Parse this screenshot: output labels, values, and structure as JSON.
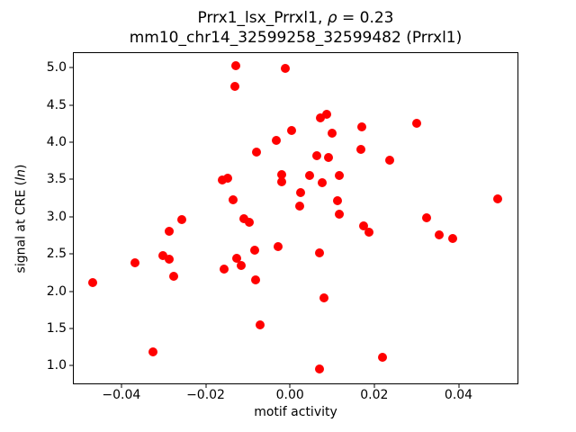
{
  "chart_data": {
    "type": "scatter",
    "title": {
      "line1_prefix": "Prrx1_lsx_Prrxl1, ",
      "line1_rho": "ρ",
      "line1_suffix": " = 0.23",
      "line2": "mm10_chr14_32599258_32599482 (Prrxl1)"
    },
    "xlabel": "motif activity",
    "ylabel": {
      "prefix": "signal at CRE (",
      "italic": "ln",
      "suffix": ")"
    },
    "marker_color": "#ff0000",
    "axis_color": "#000000",
    "legend": "none",
    "grid": false,
    "xlim": [
      -0.0515,
      0.0542
    ],
    "ylim": [
      0.75,
      5.21
    ],
    "xticks": [
      -0.04,
      -0.02,
      0,
      0.02,
      0.04
    ],
    "xtick_labels": [
      "−0.04",
      "−0.02",
      "0.00",
      "0.02",
      "0.04"
    ],
    "yticks": [
      1.0,
      1.5,
      2.0,
      2.5,
      3.0,
      3.5,
      4.0,
      4.5,
      5.0
    ],
    "ytick_labels": [
      "1.0",
      "1.5",
      "2.0",
      "2.5",
      "3.0",
      "3.5",
      "4.0",
      "4.5",
      "5.0"
    ],
    "points": [
      [
        -0.0129,
        5.03
      ],
      [
        -0.001,
        4.99
      ],
      [
        -0.0131,
        4.75
      ],
      [
        0.0004,
        4.16
      ],
      [
        -0.0033,
        4.03
      ],
      [
        -0.008,
        3.87
      ],
      [
        -0.0019,
        3.57
      ],
      [
        -0.0019,
        3.47
      ],
      [
        -0.0161,
        3.49
      ],
      [
        -0.0148,
        3.52
      ],
      [
        -0.0134,
        3.23
      ],
      [
        -0.0109,
        2.97
      ],
      [
        -0.0097,
        2.92
      ],
      [
        -0.0257,
        2.96
      ],
      [
        -0.0287,
        2.8
      ],
      [
        -0.0029,
        2.6
      ],
      [
        -0.0084,
        2.55
      ],
      [
        -0.0368,
        2.38
      ],
      [
        -0.0301,
        2.48
      ],
      [
        -0.0286,
        2.43
      ],
      [
        -0.0126,
        2.44
      ],
      [
        -0.0116,
        2.34
      ],
      [
        -0.0157,
        2.3
      ],
      [
        -0.0275,
        2.2
      ],
      [
        -0.0467,
        2.12
      ],
      [
        -0.0081,
        2.15
      ],
      [
        -0.007,
        1.55
      ],
      [
        -0.0324,
        1.19
      ],
      [
        0.0073,
        4.33
      ],
      [
        0.0088,
        4.38
      ],
      [
        0.0101,
        4.12
      ],
      [
        0.0171,
        4.21
      ],
      [
        0.0301,
        4.26
      ],
      [
        0.0168,
        3.91
      ],
      [
        0.0064,
        3.82
      ],
      [
        0.0091,
        3.79
      ],
      [
        0.0236,
        3.76
      ],
      [
        0.0047,
        3.55
      ],
      [
        0.0076,
        3.46
      ],
      [
        0.0116,
        3.56
      ],
      [
        0.0025,
        3.33
      ],
      [
        0.0112,
        3.21
      ],
      [
        0.0024,
        3.14
      ],
      [
        0.0118,
        3.04
      ],
      [
        0.0324,
        2.99
      ],
      [
        0.0493,
        3.24
      ],
      [
        0.0174,
        2.88
      ],
      [
        0.0187,
        2.79
      ],
      [
        0.0354,
        2.76
      ],
      [
        0.0386,
        2.71
      ],
      [
        0.0071,
        2.51
      ],
      [
        0.008,
        1.91
      ],
      [
        0.0219,
        1.11
      ],
      [
        0.0071,
        0.96
      ]
    ]
  }
}
